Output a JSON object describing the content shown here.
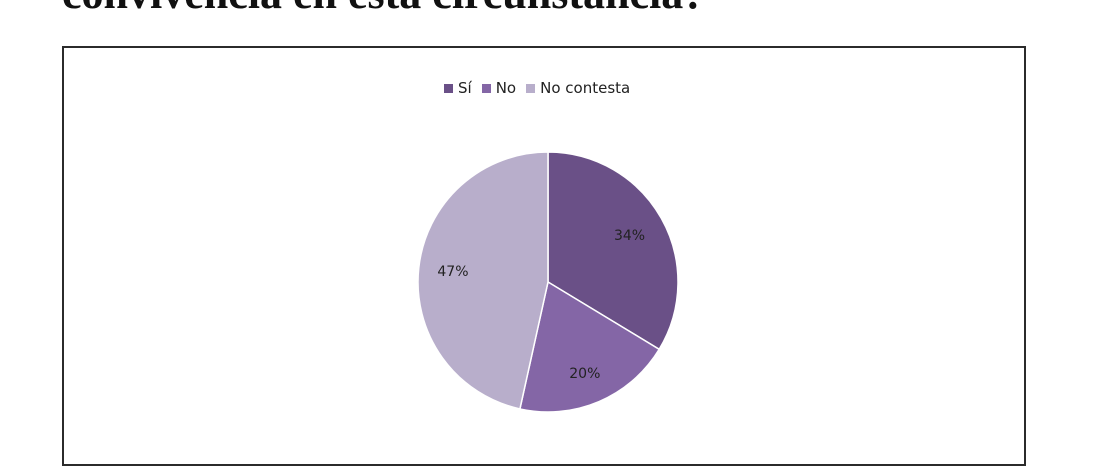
{
  "page": {
    "heading": "convivencia en esta circunstancia?"
  },
  "colors": {
    "si": "#6a5087",
    "no": "#8466a6",
    "no_contesta": "#b8aecb"
  },
  "chart_data": {
    "type": "pie",
    "title": "",
    "categories": [
      "Sí",
      "No",
      "No contesta"
    ],
    "values": [
      34,
      20,
      47
    ],
    "labels": [
      "34%",
      "20%",
      "47%"
    ],
    "legend_position": "top",
    "start_angle": "12 o'clock, clockwise"
  }
}
